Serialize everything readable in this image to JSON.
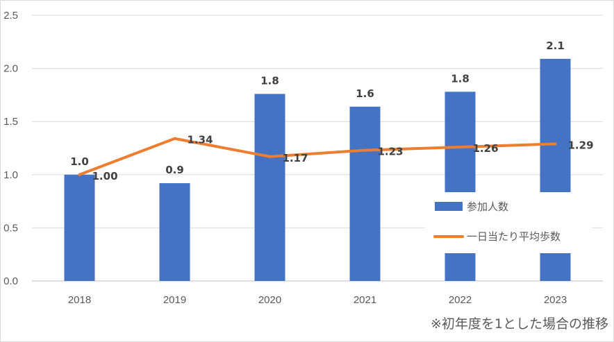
{
  "chart_data": {
    "type": "bar",
    "categories": [
      "2018",
      "2019",
      "2020",
      "2021",
      "2022",
      "2023"
    ],
    "series": [
      {
        "name": "参加人数",
        "type": "bar",
        "color": "#4472c4",
        "values": [
          1.0,
          0.92,
          1.76,
          1.64,
          1.78,
          2.09
        ],
        "labels": [
          "1.0",
          "0.9",
          "1.8",
          "1.6",
          "1.8",
          "2.1"
        ]
      },
      {
        "name": "一日当たり平均歩数",
        "type": "line",
        "color": "#ed7d31",
        "values": [
          1.0,
          1.34,
          1.17,
          1.23,
          1.26,
          1.29
        ],
        "labels": [
          "1.00",
          "1.34",
          "1.17",
          "1.23",
          "1.26",
          "1.29"
        ]
      }
    ],
    "ylim": [
      0,
      2.5
    ],
    "yticks": [
      "0.0",
      "0.5",
      "1.0",
      "1.5",
      "2.0",
      "2.5"
    ],
    "grid": true,
    "legend": "right"
  },
  "note": "※初年度を1とした場合の推移"
}
